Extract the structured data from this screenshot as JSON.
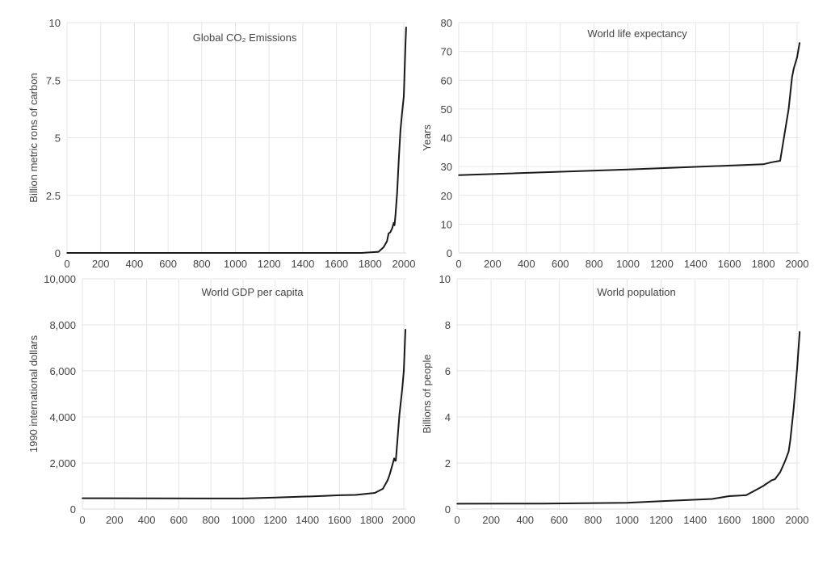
{
  "chart_data": [
    {
      "type": "line",
      "title": "Global CO₂ Emissions",
      "xlabel": "",
      "ylabel": "Billion metric rons of carbon",
      "xlim": [
        0,
        2015
      ],
      "ylim": [
        0,
        10
      ],
      "xticks": [
        "0",
        "200",
        "400",
        "600",
        "800",
        "1000",
        "1200",
        "1400",
        "1600",
        "1800",
        "2000"
      ],
      "yticks": [
        "0",
        "2.5",
        "5",
        "7.5",
        "10"
      ],
      "grid": true,
      "x": [
        0,
        1750,
        1850,
        1880,
        1900,
        1910,
        1920,
        1930,
        1940,
        1945,
        1950,
        1960,
        1970,
        1980,
        1990,
        2000,
        2010,
        2014
      ],
      "y": [
        0,
        0,
        0.05,
        0.25,
        0.5,
        0.85,
        0.9,
        1.05,
        1.3,
        1.2,
        1.6,
        2.6,
        4.0,
        5.3,
        6.1,
        6.8,
        9.1,
        9.8
      ]
    },
    {
      "type": "line",
      "title": "World life expectancy",
      "xlabel": "",
      "ylabel": "Years",
      "xlim": [
        0,
        2015
      ],
      "ylim": [
        0,
        80
      ],
      "xticks": [
        "0",
        "200",
        "400",
        "600",
        "800",
        "1000",
        "1200",
        "1400",
        "1600",
        "1800",
        "2000"
      ],
      "yticks": [
        "0",
        "10",
        "20",
        "30",
        "40",
        "50",
        "60",
        "70",
        "80"
      ],
      "grid": true,
      "x": [
        0,
        1000,
        1800,
        1850,
        1900,
        1950,
        1970,
        1980,
        2000,
        2015
      ],
      "y": [
        27,
        29,
        30.8,
        31.5,
        32,
        50,
        61,
        64,
        68,
        73
      ]
    },
    {
      "type": "line",
      "title": "World GDP per capita",
      "xlabel": "",
      "ylabel": "1990 international dollars",
      "xlim": [
        0,
        2015
      ],
      "ylim": [
        0,
        10000
      ],
      "xticks": [
        "0",
        "200",
        "400",
        "600",
        "800",
        "1000",
        "1200",
        "1400",
        "1600",
        "1800",
        "2000"
      ],
      "yticks": [
        "0",
        "2,000",
        "4,000",
        "6,000",
        "8,000",
        "10,000"
      ],
      "grid": true,
      "x": [
        0,
        1000,
        1200,
        1500,
        1600,
        1700,
        1820,
        1870,
        1900,
        1913,
        1940,
        1945,
        1950,
        1973,
        1990,
        2000,
        2010
      ],
      "y": [
        470,
        460,
        500,
        570,
        600,
        615,
        700,
        880,
        1260,
        1520,
        2200,
        2100,
        2100,
        4100,
        5200,
        6000,
        7800
      ]
    },
    {
      "type": "line",
      "title": "World population",
      "xlabel": "",
      "ylabel": "Billions of people",
      "xlim": [
        0,
        2015
      ],
      "ylim": [
        0,
        10
      ],
      "xticks": [
        "0",
        "200",
        "400",
        "600",
        "800",
        "1000",
        "1200",
        "1400",
        "1600",
        "1800",
        "2000"
      ],
      "yticks": [
        "0",
        "2",
        "4",
        "6",
        "8",
        "10"
      ],
      "grid": true,
      "x": [
        0,
        500,
        1000,
        1200,
        1500,
        1600,
        1700,
        1750,
        1800,
        1850,
        1870,
        1900,
        1930,
        1950,
        1960,
        1980,
        2000,
        2015
      ],
      "y": [
        0.23,
        0.24,
        0.27,
        0.34,
        0.44,
        0.56,
        0.6,
        0.8,
        1.0,
        1.25,
        1.3,
        1.6,
        2.1,
        2.5,
        3.0,
        4.4,
        6.1,
        7.7
      ]
    }
  ]
}
